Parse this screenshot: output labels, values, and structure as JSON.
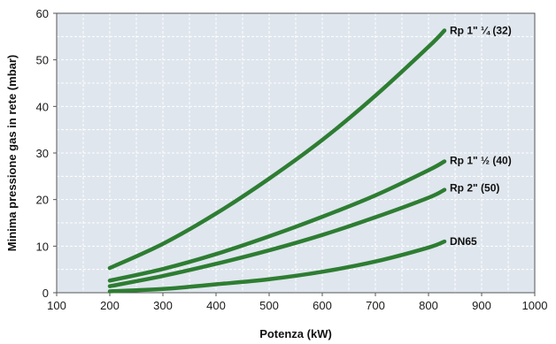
{
  "chart_data": {
    "type": "line",
    "xlabel": "Potenza (kW)",
    "ylabel": "Minima pressione gas in rete (mbar)",
    "xlim": [
      100,
      1000
    ],
    "ylim": [
      0,
      60
    ],
    "x_ticks": [
      "100",
      "200",
      "300",
      "400",
      "500",
      "600",
      "700",
      "800",
      "900",
      "1000"
    ],
    "y_ticks": [
      "0",
      "10",
      "20",
      "30",
      "40",
      "50",
      "60"
    ],
    "x_minor_step": 50,
    "y_minor_step": 5,
    "grid": true,
    "grid_style": "dashed",
    "colors": {
      "background": "#ffffff",
      "plot_background": "#dfe6ee",
      "grid": "#ffffff",
      "axis": "#555555",
      "line": "#2e7d32"
    },
    "series": [
      {
        "name": "Rp 1\" ¼ (32)",
        "x": [
          200,
          300,
          400,
          500,
          600,
          700,
          800,
          830
        ],
        "y": [
          5.3,
          10.5,
          17,
          24.5,
          32.8,
          42.3,
          52.8,
          56.3
        ]
      },
      {
        "name": "Rp 1\" ½ (40)",
        "x": [
          200,
          300,
          400,
          500,
          600,
          700,
          800,
          830
        ],
        "y": [
          2.6,
          5.1,
          8.3,
          12.1,
          16.3,
          20.9,
          26.3,
          28.2
        ]
      },
      {
        "name": "Rp 2\" (50)",
        "x": [
          200,
          300,
          400,
          500,
          600,
          700,
          800,
          830
        ],
        "y": [
          1.4,
          3.6,
          6.2,
          9.1,
          12.4,
          16.2,
          20.4,
          22.1
        ]
      },
      {
        "name": "DN65",
        "x": [
          200,
          300,
          400,
          500,
          600,
          700,
          800,
          830
        ],
        "y": [
          0.3,
          0.8,
          1.8,
          2.9,
          4.5,
          6.7,
          9.7,
          11.0
        ]
      }
    ]
  }
}
